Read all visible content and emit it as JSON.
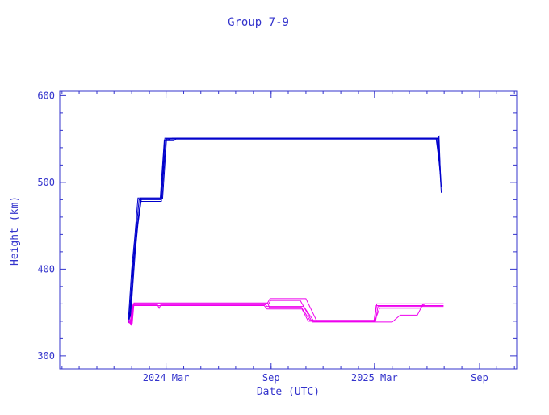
{
  "chart_data": {
    "type": "line",
    "title": "Group  7-9",
    "xlabel": "Date (UTC)",
    "ylabel": "Height (km)",
    "ylim": [
      285,
      605
    ],
    "xlim": [
      "2023-08-28",
      "2025-11-05"
    ],
    "yticks": [
      300,
      400,
      500,
      600
    ],
    "xticks": [
      {
        "date": "2024-03-01",
        "label": "2024 Mar"
      },
      {
        "date": "2024-09-01",
        "label": "Sep"
      },
      {
        "date": "2025-03-01",
        "label": "2025 Mar"
      },
      {
        "date": "2025-09-01",
        "label": "Sep"
      }
    ],
    "grid": false,
    "colors": {
      "frame": "#3333cc",
      "text": "#3333cc",
      "blue_series": "#0000cc",
      "magenta_series": "#ee00ee"
    },
    "series": [
      {
        "color": "#0000cc",
        "points": [
          [
            "2023-12-26",
            340
          ],
          [
            "2024-01-01",
            400
          ],
          [
            "2024-01-06",
            435
          ],
          [
            "2024-01-12",
            482
          ],
          [
            "2024-02-20",
            482
          ],
          [
            "2024-02-27",
            549
          ],
          [
            "2024-03-05",
            549
          ],
          [
            "2024-03-12",
            551
          ],
          [
            "2025-06-20",
            551
          ],
          [
            "2025-06-26",
            488
          ]
        ]
      },
      {
        "color": "#0000cc",
        "points": [
          [
            "2023-12-27",
            338
          ],
          [
            "2024-01-03",
            405
          ],
          [
            "2024-01-08",
            440
          ],
          [
            "2024-01-14",
            480
          ],
          [
            "2024-02-21",
            480
          ],
          [
            "2024-02-28",
            548
          ],
          [
            "2024-03-15",
            548
          ],
          [
            "2024-03-20",
            551
          ],
          [
            "2025-06-21",
            551
          ],
          [
            "2025-06-26",
            495
          ]
        ]
      },
      {
        "color": "#0000cc",
        "points": [
          [
            "2023-12-28",
            342
          ],
          [
            "2024-01-04",
            410
          ],
          [
            "2024-01-10",
            445
          ],
          [
            "2024-01-16",
            478
          ],
          [
            "2024-02-22",
            478
          ],
          [
            "2024-03-01",
            550
          ],
          [
            "2025-06-19",
            550
          ],
          [
            "2025-06-22",
            553
          ],
          [
            "2025-06-25",
            500
          ]
        ]
      },
      {
        "color": "#0000cc",
        "points": [
          [
            "2023-12-29",
            345
          ],
          [
            "2024-01-05",
            412
          ],
          [
            "2024-01-11",
            450
          ],
          [
            "2024-01-17",
            482
          ],
          [
            "2024-02-23",
            482
          ],
          [
            "2024-02-28",
            551
          ],
          [
            "2025-06-18",
            551
          ],
          [
            "2025-06-24",
            510
          ]
        ]
      },
      {
        "color": "#0000cc",
        "points": [
          [
            "2023-12-30",
            344
          ],
          [
            "2024-01-07",
            418
          ],
          [
            "2024-01-12",
            452
          ],
          [
            "2024-01-18",
            481
          ],
          [
            "2024-02-24",
            481
          ],
          [
            "2024-03-02",
            550
          ],
          [
            "2025-06-17",
            550
          ],
          [
            "2025-06-23",
            520
          ]
        ]
      },
      {
        "color": "#ee00ee",
        "points": [
          [
            "2023-12-25",
            340
          ],
          [
            "2023-12-30",
            337
          ],
          [
            "2024-01-02",
            360
          ],
          [
            "2024-08-25",
            360
          ],
          [
            "2024-08-30",
            366
          ],
          [
            "2024-11-01",
            366
          ],
          [
            "2024-11-20",
            340
          ],
          [
            "2025-03-01",
            340
          ],
          [
            "2025-03-05",
            360
          ],
          [
            "2025-06-30",
            360
          ]
        ]
      },
      {
        "color": "#ee00ee",
        "points": [
          [
            "2023-12-26",
            342
          ],
          [
            "2023-12-31",
            336
          ],
          [
            "2024-01-03",
            358
          ],
          [
            "2024-08-20",
            358
          ],
          [
            "2024-08-25",
            354
          ],
          [
            "2024-10-25",
            354
          ],
          [
            "2024-11-05",
            340
          ],
          [
            "2025-02-28",
            340
          ],
          [
            "2025-03-04",
            358
          ],
          [
            "2025-06-30",
            358
          ]
        ]
      },
      {
        "color": "#ee00ee",
        "points": [
          [
            "2023-12-27",
            338
          ],
          [
            "2024-01-01",
            339
          ],
          [
            "2024-01-04",
            360
          ],
          [
            "2024-08-28",
            360
          ],
          [
            "2024-08-31",
            364
          ],
          [
            "2024-10-22",
            364
          ],
          [
            "2024-11-12",
            339
          ],
          [
            "2025-04-01",
            339
          ],
          [
            "2025-04-15",
            347
          ],
          [
            "2025-05-15",
            347
          ],
          [
            "2025-05-25",
            360
          ],
          [
            "2025-06-30",
            360
          ]
        ]
      },
      {
        "color": "#ee00ee",
        "points": [
          [
            "2023-12-28",
            341
          ],
          [
            "2024-01-02",
            338
          ],
          [
            "2024-01-05",
            361
          ],
          [
            "2024-08-26",
            361
          ],
          [
            "2024-08-29",
            356
          ],
          [
            "2024-10-24",
            356
          ],
          [
            "2024-11-08",
            341
          ],
          [
            "2025-03-02",
            341
          ],
          [
            "2025-03-10",
            355
          ],
          [
            "2025-05-20",
            355
          ],
          [
            "2025-05-28",
            360
          ],
          [
            "2025-06-30",
            360
          ]
        ]
      },
      {
        "color": "#ee00ee",
        "points": [
          [
            "2023-12-29",
            339
          ],
          [
            "2024-01-04",
            359
          ],
          [
            "2024-02-15",
            359
          ],
          [
            "2024-02-18",
            355
          ],
          [
            "2024-02-21",
            359
          ],
          [
            "2024-08-22",
            359
          ],
          [
            "2024-08-25",
            357
          ],
          [
            "2024-10-28",
            357
          ],
          [
            "2024-11-15",
            340
          ],
          [
            "2025-03-03",
            340
          ],
          [
            "2025-03-07",
            357
          ],
          [
            "2025-06-30",
            357
          ]
        ]
      }
    ]
  }
}
